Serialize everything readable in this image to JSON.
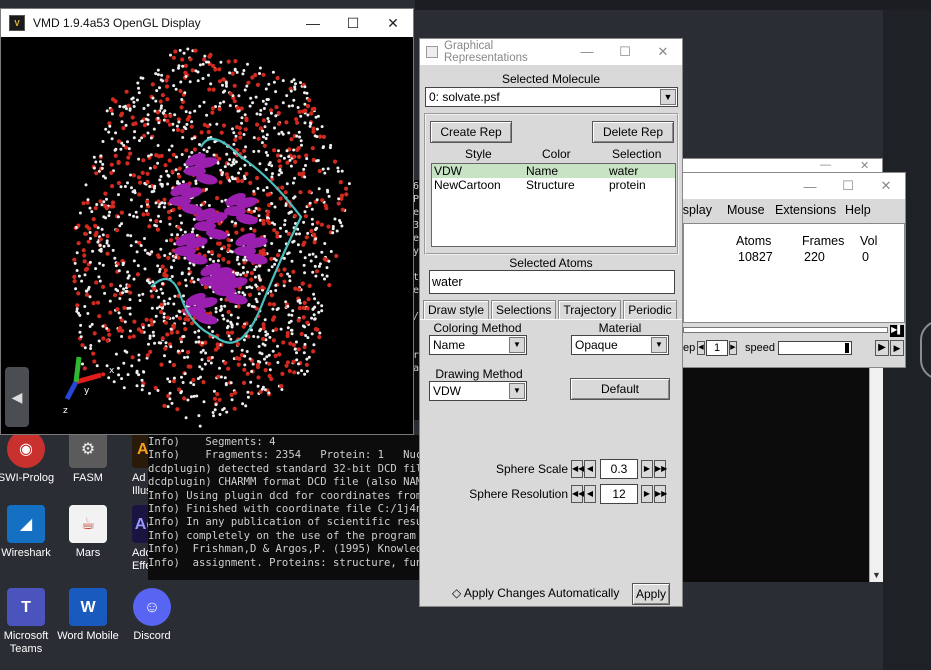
{
  "gl_window": {
    "title": "VMD 1.9.4a53 OpenGL Display",
    "axis_labels": {
      "x": "x",
      "y": "y",
      "z": "z"
    }
  },
  "console": {
    "lines": [
      "Info)    Segments: 4",
      "Info)    Fragments: 2354   Protein: 1   Nucle",
      "dcdplugin) detected standard 32-bit DCD file",
      "dcdplugin) CHARMM format DCD file (also NAMD",
      "Info) Using plugin dcd for coordinates from f",
      "Info) Finished with coordinate file C:/1j4n/s",
      "Info) In any publication of scientific result",
      "Info) completely on the use of the program ST",
      "Info)  Frishman,D & Argos,P. (1995) Knowledge",
      "Info)  assignment. Proteins: structure, funct"
    ],
    "strip_chars": [
      "6",
      "P",
      "e",
      "3",
      "e",
      "y",
      "",
      "t",
      "e",
      "",
      "/",
      "",
      "",
      "r",
      "a"
    ]
  },
  "graphical_reps": {
    "title": "Graphical Representations",
    "selected_molecule_label": "Selected Molecule",
    "selected_molecule": "0: solvate.psf",
    "create_rep": "Create Rep",
    "delete_rep": "Delete Rep",
    "columns": [
      "Style",
      "Color",
      "Selection"
    ],
    "reps": [
      {
        "style": "VDW",
        "color": "Name",
        "selection": "water"
      },
      {
        "style": "NewCartoon",
        "color": "Structure",
        "selection": "protein"
      }
    ],
    "selected_atoms_label": "Selected Atoms",
    "selected_atoms": "water",
    "tabs": [
      "Draw style",
      "Selections",
      "Trajectory",
      "Periodic"
    ],
    "coloring_method_label": "Coloring Method",
    "coloring_method": "Name",
    "material_label": "Material",
    "material": "Opaque",
    "drawing_method_label": "Drawing Method",
    "drawing_method": "VDW",
    "default_button": "Default",
    "sphere_scale_label": "Sphere Scale",
    "sphere_scale": "0.3",
    "sphere_resolution_label": "Sphere Resolution",
    "sphere_resolution": "12",
    "apply_auto_label": "Apply Changes Automatically",
    "apply_button": "Apply"
  },
  "main_window": {
    "menu": [
      "isplay",
      "Mouse",
      "Extensions",
      "Help"
    ],
    "columns": [
      "Atoms",
      "Frames",
      "Vol"
    ],
    "row": {
      "atoms": "10827",
      "frames": "220",
      "vol": "0"
    },
    "step_label": "ep",
    "step_value": "1",
    "speed_label": "speed"
  },
  "desktop_icons": [
    {
      "label": "SWI-Prolog",
      "name": "swi-prolog-icon"
    },
    {
      "label": "FASM",
      "name": "fasm-icon"
    },
    {
      "label": "Ad Illus",
      "name": "illustrator-icon"
    },
    {
      "label": "Wireshark",
      "name": "wireshark-icon"
    },
    {
      "label": "Mars",
      "name": "mars-icon"
    },
    {
      "label": "Adob Effect",
      "name": "after-effects-icon"
    },
    {
      "label": "Microsoft Teams",
      "name": "teams-icon"
    },
    {
      "label": "Word Mobile",
      "name": "word-icon"
    },
    {
      "label": "Discord",
      "name": "discord-icon"
    }
  ]
}
